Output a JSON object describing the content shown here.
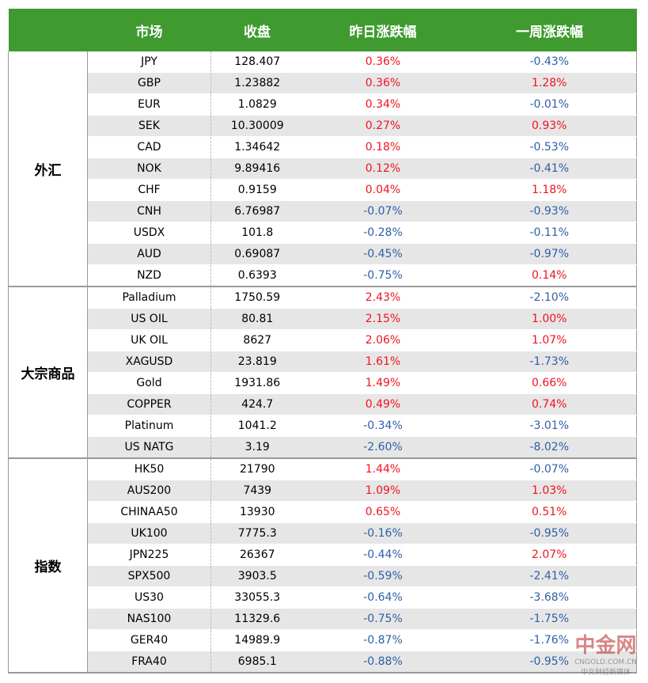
{
  "header": [
    "市场",
    "收盘",
    "昨日涨跌幅",
    "一周涨跌幅"
  ],
  "groups": [
    {
      "name": "外汇",
      "rows": [
        [
          "JPY",
          "128.407",
          "0.36%",
          "-0.43%"
        ],
        [
          "GBP",
          "1.23882",
          "0.36%",
          "1.28%"
        ],
        [
          "EUR",
          "1.0829",
          "0.34%",
          "-0.01%"
        ],
        [
          "SEK",
          "10.30009",
          "0.27%",
          "0.93%"
        ],
        [
          "CAD",
          "1.34642",
          "0.18%",
          "-0.53%"
        ],
        [
          "NOK",
          "9.89416",
          "0.12%",
          "-0.41%"
        ],
        [
          "CHF",
          "0.9159",
          "0.04%",
          "1.18%"
        ],
        [
          "CNH",
          "6.76987",
          "-0.07%",
          "-0.93%"
        ],
        [
          "USDX",
          "101.8",
          "-0.28%",
          "-0.11%"
        ],
        [
          "AUD",
          "0.69087",
          "-0.45%",
          "-0.97%"
        ],
        [
          "NZD",
          "0.6393",
          "-0.75%",
          "0.14%"
        ]
      ]
    },
    {
      "name": "大宗商品",
      "rows": [
        [
          "Palladium",
          "1750.59",
          "2.43%",
          "-2.10%"
        ],
        [
          "US OIL",
          "80.81",
          "2.15%",
          "1.00%"
        ],
        [
          "UK OIL",
          "8627",
          "2.06%",
          "1.07%"
        ],
        [
          "XAGUSD",
          "23.819",
          "1.61%",
          "-1.73%"
        ],
        [
          "Gold",
          "1931.86",
          "1.49%",
          "0.66%"
        ],
        [
          "COPPER",
          "424.7",
          "0.49%",
          "0.74%"
        ],
        [
          "Platinum",
          "1041.2",
          "-0.34%",
          "-3.01%"
        ],
        [
          "US NATG",
          "3.19",
          "-2.60%",
          "-8.02%"
        ]
      ]
    },
    {
      "name": "指数",
      "rows": [
        [
          "HK50",
          "21790",
          "1.44%",
          "-0.07%"
        ],
        [
          "AUS200",
          "7439",
          "1.09%",
          "1.03%"
        ],
        [
          "CHINAA50",
          "13930",
          "0.65%",
          "0.51%"
        ],
        [
          "UK100",
          "7775.3",
          "-0.16%",
          "-0.95%"
        ],
        [
          "JPN225",
          "26367",
          "-0.44%",
          "2.07%"
        ],
        [
          "SPX500",
          "3903.5",
          "-0.59%",
          "-2.41%"
        ],
        [
          "US30",
          "33055.3",
          "-0.64%",
          "-3.68%"
        ],
        [
          "NAS100",
          "11329.6",
          "-0.75%",
          "-1.75%"
        ],
        [
          "GER40",
          "14989.9",
          "-0.87%",
          "-1.76%"
        ],
        [
          "FRA40",
          "6985.1",
          "-0.88%",
          "-0.95%"
        ]
      ]
    }
  ],
  "watermark": {
    "brand": "中金网",
    "site": "CNGOLD.COM.CN",
    "slogan": "中文财经新媒体"
  }
}
